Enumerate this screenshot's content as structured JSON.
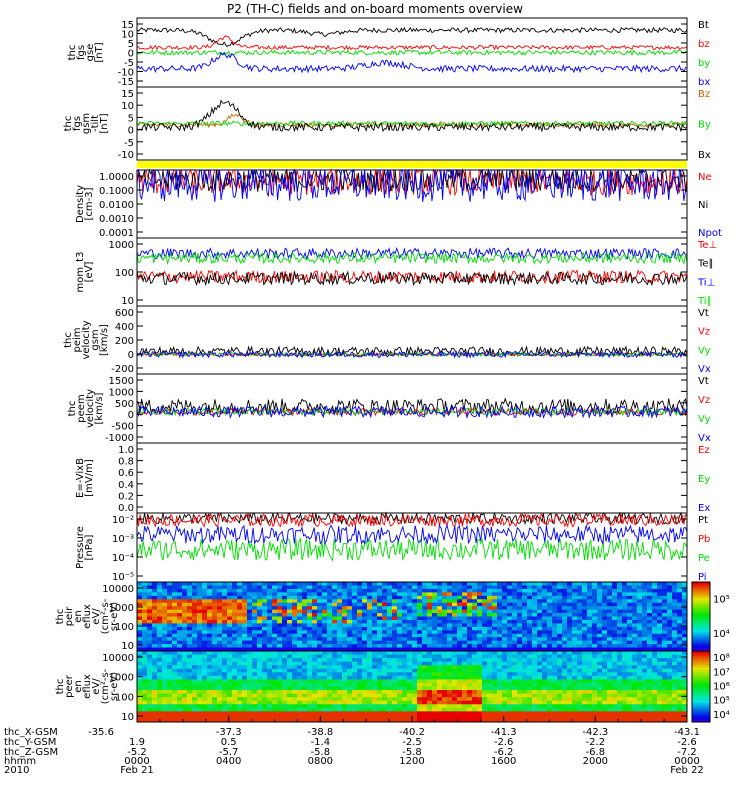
{
  "title": "P2 (TH-C) fields and on-board moments overview",
  "chart_data": [
    {
      "type": "line",
      "panel": "fgs_gse",
      "ylabel_lines": [
        "thc",
        "fgs",
        "gse",
        "[nT]"
      ],
      "yticks": [
        15,
        10,
        5,
        0,
        -5,
        -10,
        -15
      ],
      "ylim": [
        -17,
        17
      ],
      "series": [
        {
          "name": "Bt",
          "color": "#000000",
          "base": 11,
          "noise": 1.2,
          "bumps": [
            [
              0.16,
              -7,
              0.04
            ],
            [
              0.34,
              -2,
              0.04
            ]
          ]
        },
        {
          "name": "bz",
          "color": "#ff0000",
          "base": 2.5,
          "noise": 1.0,
          "bumps": [
            [
              0.16,
              5,
              0.02
            ]
          ]
        },
        {
          "name": "by",
          "color": "#00dd00",
          "base": 0,
          "noise": 1.2,
          "bumps": []
        },
        {
          "name": "bx",
          "color": "#0000ff",
          "base": -8,
          "noise": 1.6,
          "bumps": [
            [
              0.16,
              7,
              0.03
            ],
            [
              0.45,
              3,
              0.05
            ]
          ]
        }
      ]
    },
    {
      "type": "line",
      "panel": "fgs_gsm",
      "ylabel_lines": [
        "thc",
        "fgs",
        "gsm",
        "-tilt",
        "[nT]"
      ],
      "yticks": [
        15,
        10,
        5,
        0,
        -5,
        -10
      ],
      "ylim": [
        -14,
        16
      ],
      "series": [
        {
          "name": "Bz",
          "color": "#cc6600",
          "base": 0.5,
          "noise": 1.0,
          "bumps": [
            [
              0.18,
              4,
              0.02
            ]
          ]
        },
        {
          "name": "By",
          "color": "#00dd00",
          "base": 1,
          "noise": 1.0,
          "bumps": []
        },
        {
          "name": "Bx",
          "color": "#000000",
          "base": -0.5,
          "noise": 1.6,
          "bumps": [
            [
              0.16,
              10,
              0.035
            ]
          ]
        }
      ]
    },
    {
      "type": "line",
      "panel": "density",
      "scale": "log",
      "ylabel_lines": [
        "Density",
        "[cm-3]"
      ],
      "yticks": [
        "1.0000",
        "0.1000",
        "0.0100",
        "0.0010",
        "0.0001"
      ],
      "ylim": [
        0.0001,
        2
      ],
      "series": [
        {
          "name": "Ne",
          "color": "#ff0000",
          "base": 0.4,
          "noise": 0.9
        },
        {
          "name": "Ni",
          "color": "#000000",
          "base": 0.5,
          "noise": 0.8
        },
        {
          "name": "Npot",
          "color": "#0000ff",
          "base": 0.3,
          "noise": 1.2
        }
      ]
    },
    {
      "type": "line",
      "panel": "temperature",
      "scale": "log",
      "ylabel_lines": [
        "mom_t3",
        "[eV]"
      ],
      "yticks": [
        "1000",
        "100",
        "10"
      ],
      "ylim": [
        5,
        8000
      ],
      "series": [
        {
          "name": "Te⊥",
          "color": "#ff0000",
          "base": 120,
          "noise": 0.3
        },
        {
          "name": "Te∥",
          "color": "#000000",
          "base": 100,
          "noise": 0.3
        },
        {
          "name": "Ti⊥",
          "color": "#0000ff",
          "base": 1500,
          "noise": 0.25
        },
        {
          "name": "Ti∥",
          "color": "#00dd00",
          "base": 900,
          "noise": 0.25
        }
      ]
    },
    {
      "type": "line",
      "panel": "peim_velocity",
      "ylabel_lines": [
        "thc",
        "peim",
        "velocity",
        "gsm",
        "[km/s]"
      ],
      "yticks": [
        600,
        400,
        200,
        0,
        -200
      ],
      "ylim": [
        -260,
        640
      ],
      "series": [
        {
          "name": "Vt",
          "color": "#000000",
          "base": 40,
          "noise": 60
        },
        {
          "name": "Vz",
          "color": "#ff0000",
          "base": 0,
          "noise": 20
        },
        {
          "name": "Vy",
          "color": "#00dd00",
          "base": 0,
          "noise": 25
        },
        {
          "name": "Vx",
          "color": "#0000ff",
          "base": 0,
          "noise": 40
        }
      ]
    },
    {
      "type": "line",
      "panel": "peem_velocity",
      "ylabel_lines": [
        "thc",
        "peem",
        "velocity",
        "[km/s]"
      ],
      "yticks": [
        1500,
        1000,
        500,
        0,
        -500,
        -1000
      ],
      "ylim": [
        -1400,
        1700
      ],
      "series": [
        {
          "name": "Vt",
          "color": "#000000",
          "base": 250,
          "noise": 350
        },
        {
          "name": "Vz",
          "color": "#ff0000",
          "base": 0,
          "noise": 150
        },
        {
          "name": "Vy",
          "color": "#00dd00",
          "base": 0,
          "noise": 150
        },
        {
          "name": "Vx",
          "color": "#0000ff",
          "base": 0,
          "noise": 250
        }
      ]
    },
    {
      "type": "line",
      "panel": "E_vxb",
      "ylabel_lines": [
        "E=-VixB",
        "[mV/m]"
      ],
      "yticks": [
        "1.0",
        "0.8",
        "0.6",
        "0.4",
        "0.2",
        "0.0"
      ],
      "ylim": [
        0,
        1
      ],
      "series": [
        {
          "name": "Ez",
          "color": "#ff0000"
        },
        {
          "name": "Ey",
          "color": "#00dd00"
        },
        {
          "name": "Ex",
          "color": "#0000ff"
        }
      ]
    },
    {
      "type": "line",
      "panel": "pressure",
      "scale": "log",
      "ylabel_lines": [
        "Pressure",
        "[nPa]"
      ],
      "yticks": [
        "10⁻²",
        "10⁻³",
        "10⁻⁴",
        "10⁻⁵"
      ],
      "ylim": [
        5e-06,
        0.03
      ],
      "series": [
        {
          "name": "Pt",
          "color": "#000000",
          "base": 0.015,
          "noise": 0.3
        },
        {
          "name": "Pb",
          "color": "#ff0000",
          "base": 0.012,
          "noise": 0.35
        },
        {
          "name": "Pe",
          "color": "#00dd00",
          "base": 0.0003,
          "noise": 0.6
        },
        {
          "name": "Pi",
          "color": "#0000ff",
          "base": 0.002,
          "noise": 0.5
        }
      ]
    },
    {
      "type": "heatmap",
      "panel": "peir_eflux",
      "ylabel_lines": [
        "thc",
        "peir",
        "en",
        "eflux",
        "eV/",
        "(cm²-s-",
        "sr-eV)"
      ],
      "yticks": [
        "10000",
        "1000",
        "100",
        "10"
      ],
      "colorbar_ticks": [
        "10⁵",
        "10⁴"
      ]
    },
    {
      "type": "heatmap",
      "panel": "peer_eflux",
      "ylabel_lines": [
        "thc",
        "peer",
        "en",
        "eflux",
        "eV/",
        "(cm²-s-",
        "sr-eV)"
      ],
      "yticks": [
        "10000",
        "1000",
        "100",
        "10"
      ],
      "colorbar_ticks": [
        "10⁸",
        "10⁷",
        "10⁶",
        "10⁵",
        "10⁴"
      ]
    }
  ],
  "x_axis": {
    "row_labels": [
      "thc_X-GSM",
      "thc_Y-GSM",
      "thc_Z-GSM",
      "hhmm",
      "2010"
    ],
    "columns": [
      {
        "x": "-35.6",
        "y": "1.9",
        "z": "-5.2",
        "hhmm": "0000",
        "date": "Feb 21"
      },
      {
        "x": "-37.3",
        "y": "0.5",
        "z": "-5.7",
        "hhmm": "0400",
        "date": ""
      },
      {
        "x": "-38.8",
        "y": "-1.4",
        "z": "-5.8",
        "hhmm": "0800",
        "date": ""
      },
      {
        "x": "-40.2",
        "y": "-2.5",
        "z": "-5.8",
        "hhmm": "1200",
        "date": ""
      },
      {
        "x": "-41.3",
        "y": "-2.6",
        "z": "-6.2",
        "hhmm": "1600",
        "date": ""
      },
      {
        "x": "-42.3",
        "y": "-2.2",
        "z": "-6.8",
        "hhmm": "2000",
        "date": ""
      },
      {
        "x": "-43.1",
        "y": "-2.6",
        "z": "-7.2",
        "hhmm": "0000",
        "date": "Feb 22"
      }
    ]
  }
}
